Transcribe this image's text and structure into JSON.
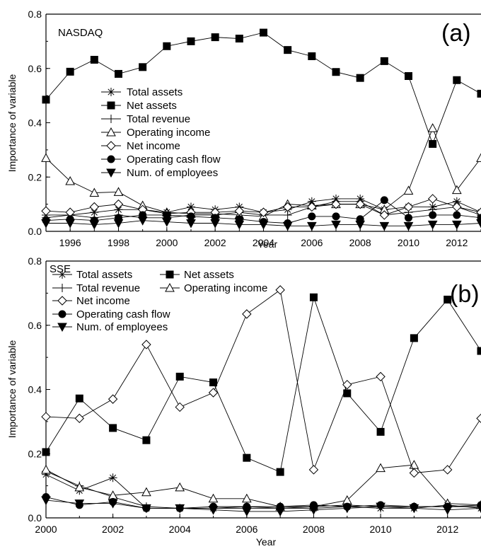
{
  "chart_data": [
    {
      "type": "line",
      "label": "(a)",
      "panel_title": "NASDAQ",
      "xlabel": "Year",
      "ylabel": "Importance of variable",
      "xlim": [
        1995,
        2013
      ],
      "ylim": [
        0,
        0.8
      ],
      "x_ticks": [
        "1996",
        "1998",
        "2000",
        "2002",
        "2004",
        "2006",
        "2008",
        "2010",
        "2012"
      ],
      "y_ticks": [
        "0.0",
        "0.2",
        "0.4",
        "0.6",
        "0.8"
      ],
      "legend_position": "center-left",
      "x": [
        1995,
        1996,
        1997,
        1998,
        1999,
        2000,
        2001,
        2002,
        2003,
        2004,
        2005,
        2006,
        2007,
        2008,
        2009,
        2010,
        2011,
        2012,
        2013
      ],
      "series": [
        {
          "name": "Total assets",
          "marker": "asterisk",
          "values": [
            0.06,
            0.06,
            0.07,
            0.08,
            0.08,
            0.07,
            0.09,
            0.08,
            0.09,
            0.07,
            0.08,
            0.11,
            0.12,
            0.12,
            0.08,
            0.09,
            0.09,
            0.11,
            0.07
          ]
        },
        {
          "name": "Net assets",
          "marker": "square-filled",
          "values": [
            0.485,
            0.588,
            0.632,
            0.58,
            0.605,
            0.682,
            0.7,
            0.715,
            0.71,
            0.732,
            0.668,
            0.645,
            0.587,
            0.565,
            0.627,
            0.572,
            0.322,
            0.557,
            0.507
          ]
        },
        {
          "name": "Total revenue",
          "marker": "plus",
          "values": [
            0.05,
            0.06,
            0.05,
            0.06,
            0.05,
            0.05,
            0.06,
            0.06,
            0.07,
            0.06,
            0.06,
            0.09,
            0.11,
            0.11,
            0.06,
            0.07,
            0.08,
            0.09,
            0.06
          ]
        },
        {
          "name": "Operating income",
          "marker": "triangle-open",
          "values": [
            0.27,
            0.185,
            0.142,
            0.145,
            0.095,
            0.07,
            0.065,
            0.065,
            0.06,
            0.055,
            0.1,
            0.095,
            0.1,
            0.1,
            0.08,
            0.15,
            0.38,
            0.152,
            0.27
          ]
        },
        {
          "name": "Net income",
          "marker": "diamond-open",
          "values": [
            0.075,
            0.07,
            0.09,
            0.1,
            0.08,
            0.065,
            0.07,
            0.07,
            0.075,
            0.07,
            0.09,
            0.09,
            0.1,
            0.1,
            0.06,
            0.09,
            0.12,
            0.09,
            0.07
          ]
        },
        {
          "name": "Operating cash flow",
          "marker": "circle-filled",
          "values": [
            0.04,
            0.045,
            0.04,
            0.05,
            0.06,
            0.06,
            0.055,
            0.05,
            0.045,
            0.035,
            0.03,
            0.055,
            0.055,
            0.045,
            0.115,
            0.05,
            0.06,
            0.06,
            0.05
          ]
        },
        {
          "name": "Num. of employees",
          "marker": "triangle-down-filled",
          "values": [
            0.03,
            0.03,
            0.025,
            0.03,
            0.04,
            0.035,
            0.03,
            0.03,
            0.025,
            0.025,
            0.02,
            0.02,
            0.025,
            0.025,
            0.02,
            0.02,
            0.025,
            0.025,
            0.03
          ]
        }
      ]
    },
    {
      "type": "line",
      "label": "(b)",
      "panel_title": "SSE",
      "xlabel": "Year",
      "ylabel": "Importance of variable",
      "xlim": [
        2000,
        2013
      ],
      "ylim": [
        0,
        0.8
      ],
      "x_ticks": [
        "2000",
        "2002",
        "2004",
        "2006",
        "2008",
        "2010",
        "2012"
      ],
      "y_ticks": [
        "0.0",
        "0.2",
        "0.4",
        "0.6",
        "0.8"
      ],
      "legend_position": "top-left",
      "x": [
        2000,
        2001,
        2002,
        2003,
        2004,
        2005,
        2006,
        2007,
        2008,
        2009,
        2010,
        2011,
        2012,
        2013
      ],
      "series": [
        {
          "name": "Total assets",
          "marker": "asterisk",
          "values": [
            0.135,
            0.085,
            0.125,
            0.03,
            0.03,
            0.03,
            0.03,
            0.03,
            0.03,
            0.035,
            0.03,
            0.03,
            0.04,
            0.03
          ]
        },
        {
          "name": "Net assets",
          "marker": "square-filled",
          "values": [
            0.205,
            0.372,
            0.28,
            0.242,
            0.44,
            0.422,
            0.187,
            0.143,
            0.687,
            0.388,
            0.268,
            0.56,
            0.68,
            0.52
          ]
        },
        {
          "name": "Total revenue",
          "marker": "plus",
          "values": [
            0.145,
            0.1,
            0.065,
            0.035,
            0.03,
            0.03,
            0.035,
            0.03,
            0.035,
            0.04,
            0.035,
            0.035,
            0.035,
            0.035
          ]
        },
        {
          "name": "Operating income",
          "marker": "triangle-open",
          "values": [
            0.15,
            0.095,
            0.07,
            0.08,
            0.095,
            0.06,
            0.06,
            0.035,
            0.035,
            0.055,
            0.155,
            0.165,
            0.045,
            0.04
          ]
        },
        {
          "name": "Net income",
          "marker": "diamond-open",
          "values": [
            0.315,
            0.31,
            0.37,
            0.54,
            0.345,
            0.39,
            0.635,
            0.71,
            0.15,
            0.415,
            0.44,
            0.14,
            0.15,
            0.31
          ]
        },
        {
          "name": "Operating cash flow",
          "marker": "circle-filled",
          "values": [
            0.065,
            0.04,
            0.05,
            0.03,
            0.03,
            0.035,
            0.035,
            0.035,
            0.04,
            0.035,
            0.04,
            0.035,
            0.035,
            0.04
          ]
        },
        {
          "name": "Num. of employees",
          "marker": "triangle-down-filled",
          "values": [
            0.055,
            0.045,
            0.045,
            0.03,
            0.03,
            0.025,
            0.02,
            0.02,
            0.025,
            0.03,
            0.035,
            0.03,
            0.025,
            0.03
          ]
        }
      ]
    }
  ]
}
